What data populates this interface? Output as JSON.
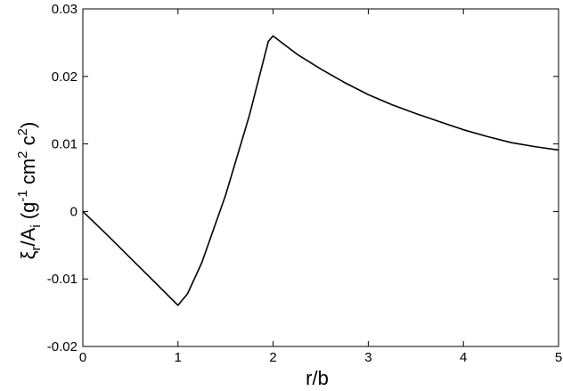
{
  "chart_data": {
    "type": "line",
    "xlabel": "r/b",
    "ylabel": {
      "xi": "ξ",
      "r_sub": "r",
      "slash_A": "/A",
      "i_sub": "i",
      "paren_open_g": " (g",
      "g_exp": "-1",
      "cm": " cm",
      "cm_exp": "2",
      "c": " c",
      "c_exp": "2",
      "paren_close": ")"
    },
    "xlim": [
      0,
      5
    ],
    "ylim": [
      -0.02,
      0.03
    ],
    "grid": false,
    "x_ticks": [
      0,
      1,
      2,
      3,
      4,
      5
    ],
    "x_tick_labels": [
      "0",
      "1",
      "2",
      "3",
      "4",
      "5"
    ],
    "y_ticks": [
      -0.02,
      -0.01,
      0,
      0.01,
      0.02,
      0.03
    ],
    "y_tick_labels": [
      "-0.02",
      "-0.01",
      "0",
      "0.01",
      "0.02",
      "0.03"
    ],
    "series": [
      {
        "color": "#000000",
        "x": [
          0,
          0.25,
          0.5,
          0.75,
          1.0,
          1.1,
          1.25,
          1.5,
          1.75,
          1.95,
          2.0,
          2.1,
          2.25,
          2.5,
          2.75,
          3.0,
          3.25,
          3.5,
          3.75,
          4.0,
          4.25,
          4.5,
          4.75,
          5.0
        ],
        "y": [
          0,
          -0.0034,
          -0.0069,
          -0.0104,
          -0.0139,
          -0.0122,
          -0.0076,
          0.0024,
          0.0142,
          0.0252,
          0.026,
          0.0249,
          0.0233,
          0.0211,
          0.0191,
          0.0173,
          0.0158,
          0.0145,
          0.0133,
          0.0121,
          0.0111,
          0.0102,
          0.0096,
          0.0091
        ]
      }
    ]
  }
}
